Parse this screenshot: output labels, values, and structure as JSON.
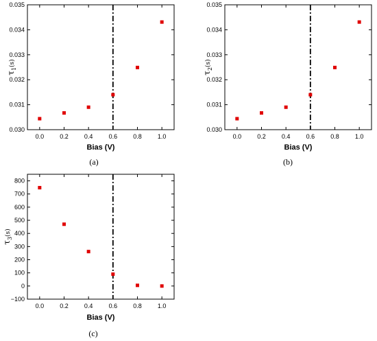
{
  "chart_data": [
    {
      "type": "scatter",
      "panel": "(a)",
      "xlabel": "Bias (V)",
      "ylabel": "τ1(s)",
      "ylabel_main": "τ",
      "ylabel_sub": "1",
      "ylabel_unit": "(s)",
      "xlim": [
        -0.1,
        1.1
      ],
      "ylim": [
        0.03,
        0.035
      ],
      "x_ticks": [
        "0.0",
        "0.2",
        "0.4",
        "0.6",
        "0.8",
        "1.0"
      ],
      "y_ticks": [
        "0.030",
        "0.031",
        "0.032",
        "0.033",
        "0.034",
        "0.035"
      ],
      "vline_x": 0.6,
      "marker_color": "#e00000",
      "x": [
        0.0,
        0.2,
        0.4,
        0.6,
        0.8,
        1.0
      ],
      "y": [
        0.03044,
        0.03067,
        0.0309,
        0.0314,
        0.03249,
        0.03431
      ]
    },
    {
      "type": "scatter",
      "panel": "(b)",
      "xlabel": "Bias (V)",
      "ylabel": "τ2(s)",
      "ylabel_main": "τ",
      "ylabel_sub": "2",
      "ylabel_unit": "(s)",
      "xlim": [
        -0.1,
        1.1
      ],
      "ylim": [
        0.03,
        0.035
      ],
      "x_ticks": [
        "0.0",
        "0.2",
        "0.4",
        "0.6",
        "0.8",
        "1.0"
      ],
      "y_ticks": [
        "0.030",
        "0.031",
        "0.032",
        "0.033",
        "0.034",
        "0.035"
      ],
      "vline_x": 0.6,
      "marker_color": "#e00000",
      "x": [
        0.0,
        0.2,
        0.4,
        0.6,
        0.8,
        1.0
      ],
      "y": [
        0.03044,
        0.03067,
        0.0309,
        0.0314,
        0.03249,
        0.03431
      ]
    },
    {
      "type": "scatter",
      "panel": "(c)",
      "xlabel": "Bias (V)",
      "ylabel": "τ3(s)",
      "ylabel_main": "τ",
      "ylabel_sub": "3",
      "ylabel_unit": "(s)",
      "xlim": [
        -0.1,
        1.1
      ],
      "ylim": [
        -100,
        850
      ],
      "x_ticks": [
        "0.0",
        "0.2",
        "0.4",
        "0.6",
        "0.8",
        "1.0"
      ],
      "y_ticks": [
        "−100",
        "0",
        "100",
        "200",
        "300",
        "400",
        "500",
        "600",
        "700",
        "800"
      ],
      "vline_x": 0.6,
      "marker_color": "#e00000",
      "x": [
        0.0,
        0.2,
        0.4,
        0.6,
        0.8,
        1.0
      ],
      "y": [
        748,
        470,
        262,
        90,
        5,
        0
      ]
    }
  ]
}
